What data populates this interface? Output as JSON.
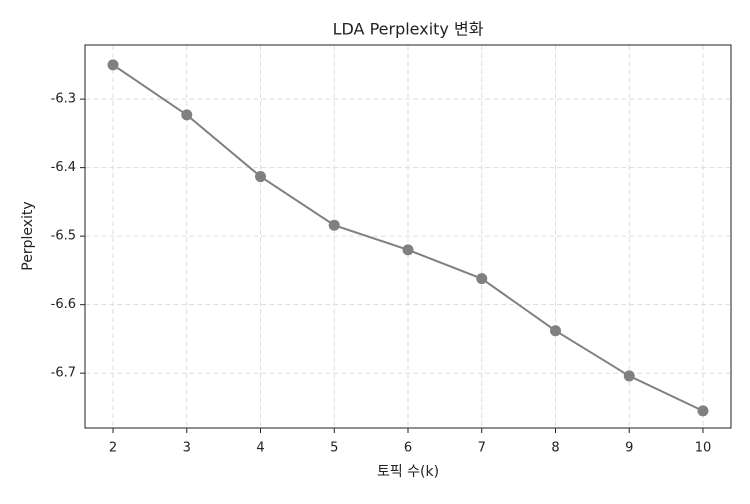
{
  "chart_data": {
    "type": "line",
    "title": "LDA Perplexity 변화",
    "x_label": "토픽 수(k)",
    "y_label": "Perplexity",
    "x": [
      2,
      3,
      4,
      5,
      6,
      7,
      8,
      9,
      10
    ],
    "series": [
      {
        "name": "Perplexity",
        "color": "#808080",
        "values": [
          -6.25,
          -6.323,
          -6.413,
          -6.484,
          -6.52,
          -6.562,
          -6.638,
          -6.704,
          -6.755
        ]
      }
    ],
    "xlim": [
      1.62,
      10.38
    ],
    "ylim": [
      -6.78,
      -6.221
    ],
    "xticks": [
      2,
      3,
      4,
      5,
      6,
      7,
      8,
      9,
      10
    ],
    "yticks": [
      -6.7,
      -6.6,
      -6.5,
      -6.4,
      -6.3
    ],
    "grid": true
  }
}
